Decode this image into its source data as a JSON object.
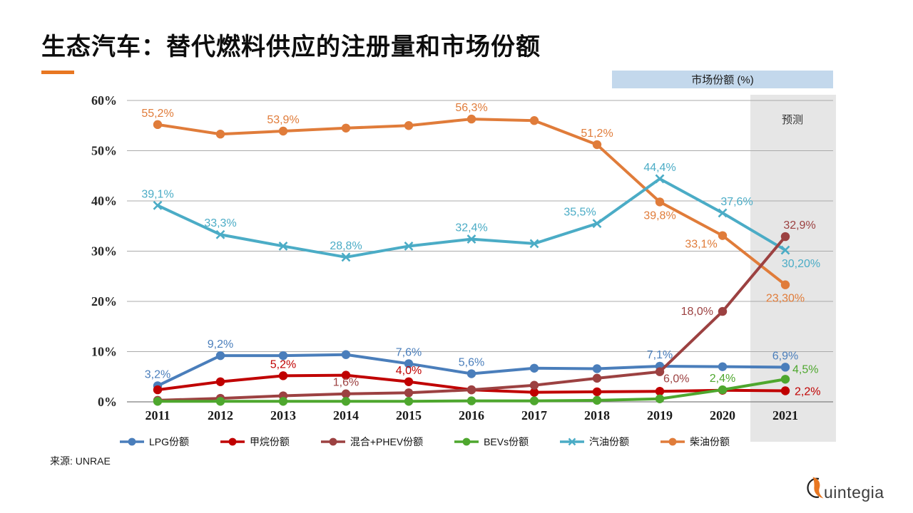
{
  "slide": {
    "title": "生态汽车：替代燃料供应的注册量和市场份额",
    "source": "来源: UNRAE",
    "logo_text": "uintegia",
    "accent_color": "#E87722"
  },
  "chart_data": {
    "type": "line",
    "title": "市场份额 (%)",
    "ylabel": "",
    "xlabel": "",
    "categories": [
      "2011",
      "2012",
      "2013",
      "2014",
      "2015",
      "2016",
      "2017",
      "2018",
      "2019",
      "2020",
      "2021"
    ],
    "ylim": [
      0,
      60
    ],
    "ytick_step": 10,
    "ytick_suffix": "%",
    "grid": true,
    "legend_position": "bottom",
    "forecast": {
      "label": "预测",
      "category": "2021",
      "fill": "#E6E6E6"
    },
    "series": [
      {
        "name": "LPG份额",
        "color": "#4A7EBB",
        "marker": "circle",
        "values": [
          3.2,
          9.2,
          9.2,
          9.4,
          7.6,
          5.6,
          6.7,
          6.6,
          7.1,
          7.0,
          6.9
        ],
        "labels": [
          {
            "i": 0,
            "text": "3,2%",
            "pos": "above"
          },
          {
            "i": 1,
            "text": "9,2%",
            "pos": "above"
          },
          {
            "i": 4,
            "text": "7,6%",
            "pos": "above"
          },
          {
            "i": 5,
            "text": "5,6%",
            "pos": "above"
          },
          {
            "i": 8,
            "text": "7,1%",
            "pos": "above"
          },
          {
            "i": 10,
            "text": "6,9%",
            "pos": "above"
          }
        ]
      },
      {
        "name": "甲烷份额",
        "color": "#C00000",
        "marker": "circle",
        "values": [
          2.4,
          4.0,
          5.2,
          5.3,
          4.0,
          2.4,
          1.9,
          2.0,
          2.1,
          2.3,
          2.2
        ],
        "labels": [
          {
            "i": 2,
            "text": "5,2%",
            "pos": "above"
          },
          {
            "i": 4,
            "text": "4,0%",
            "pos": "above"
          },
          {
            "i": 10,
            "text": "2,2%",
            "pos": "right"
          }
        ]
      },
      {
        "name": "混合+PHEV份额",
        "color": "#9C4141",
        "marker": "circle",
        "values": [
          0.3,
          0.7,
          1.2,
          1.6,
          1.8,
          2.4,
          3.3,
          4.7,
          6.0,
          18.0,
          32.9
        ],
        "labels": [
          {
            "i": 3,
            "text": "1,6%",
            "pos": "above"
          },
          {
            "i": 8,
            "text": "6,0%",
            "pos": "right-below"
          },
          {
            "i": 9,
            "text": "18,0%",
            "pos": "left"
          },
          {
            "i": 10,
            "text": "32,9%",
            "pos": "above-right"
          }
        ]
      },
      {
        "name": "BEVs份额",
        "color": "#4EA72E",
        "marker": "circle",
        "values": [
          0.1,
          0.1,
          0.1,
          0.1,
          0.1,
          0.2,
          0.2,
          0.3,
          0.6,
          2.4,
          4.5
        ],
        "labels": [
          {
            "i": 9,
            "text": "2,4%",
            "pos": "above"
          },
          {
            "i": 10,
            "text": "4,5%",
            "pos": "right-above"
          }
        ]
      },
      {
        "name": "汽油份额",
        "color": "#4BACC6",
        "marker": "x",
        "values": [
          39.1,
          33.3,
          31.0,
          28.8,
          31.0,
          32.4,
          31.5,
          35.5,
          44.4,
          37.6,
          30.2
        ],
        "labels": [
          {
            "i": 0,
            "text": "39,1%",
            "pos": "above"
          },
          {
            "i": 1,
            "text": "33,3%",
            "pos": "above"
          },
          {
            "i": 3,
            "text": "28,8%",
            "pos": "above"
          },
          {
            "i": 5,
            "text": "32,4%",
            "pos": "above"
          },
          {
            "i": 7,
            "text": "35,5%",
            "pos": "above-left"
          },
          {
            "i": 8,
            "text": "44,4%",
            "pos": "above"
          },
          {
            "i": 9,
            "text": "37,6%",
            "pos": "above-right"
          },
          {
            "i": 10,
            "text": "30,20%",
            "pos": "below-right"
          }
        ]
      },
      {
        "name": "柴油份额",
        "color": "#E07C3A",
        "marker": "circle",
        "values": [
          55.2,
          53.3,
          53.9,
          54.5,
          55.0,
          56.3,
          56.0,
          51.2,
          39.8,
          33.1,
          23.3
        ],
        "labels": [
          {
            "i": 0,
            "text": "55,2%",
            "pos": "above"
          },
          {
            "i": 2,
            "text": "53,9%",
            "pos": "above"
          },
          {
            "i": 5,
            "text": "56,3%",
            "pos": "above"
          },
          {
            "i": 7,
            "text": "51,2%",
            "pos": "above"
          },
          {
            "i": 8,
            "text": "39,8%",
            "pos": "below"
          },
          {
            "i": 9,
            "text": "33,1%",
            "pos": "below-left"
          },
          {
            "i": 10,
            "text": "23,30%",
            "pos": "below"
          }
        ]
      }
    ]
  }
}
